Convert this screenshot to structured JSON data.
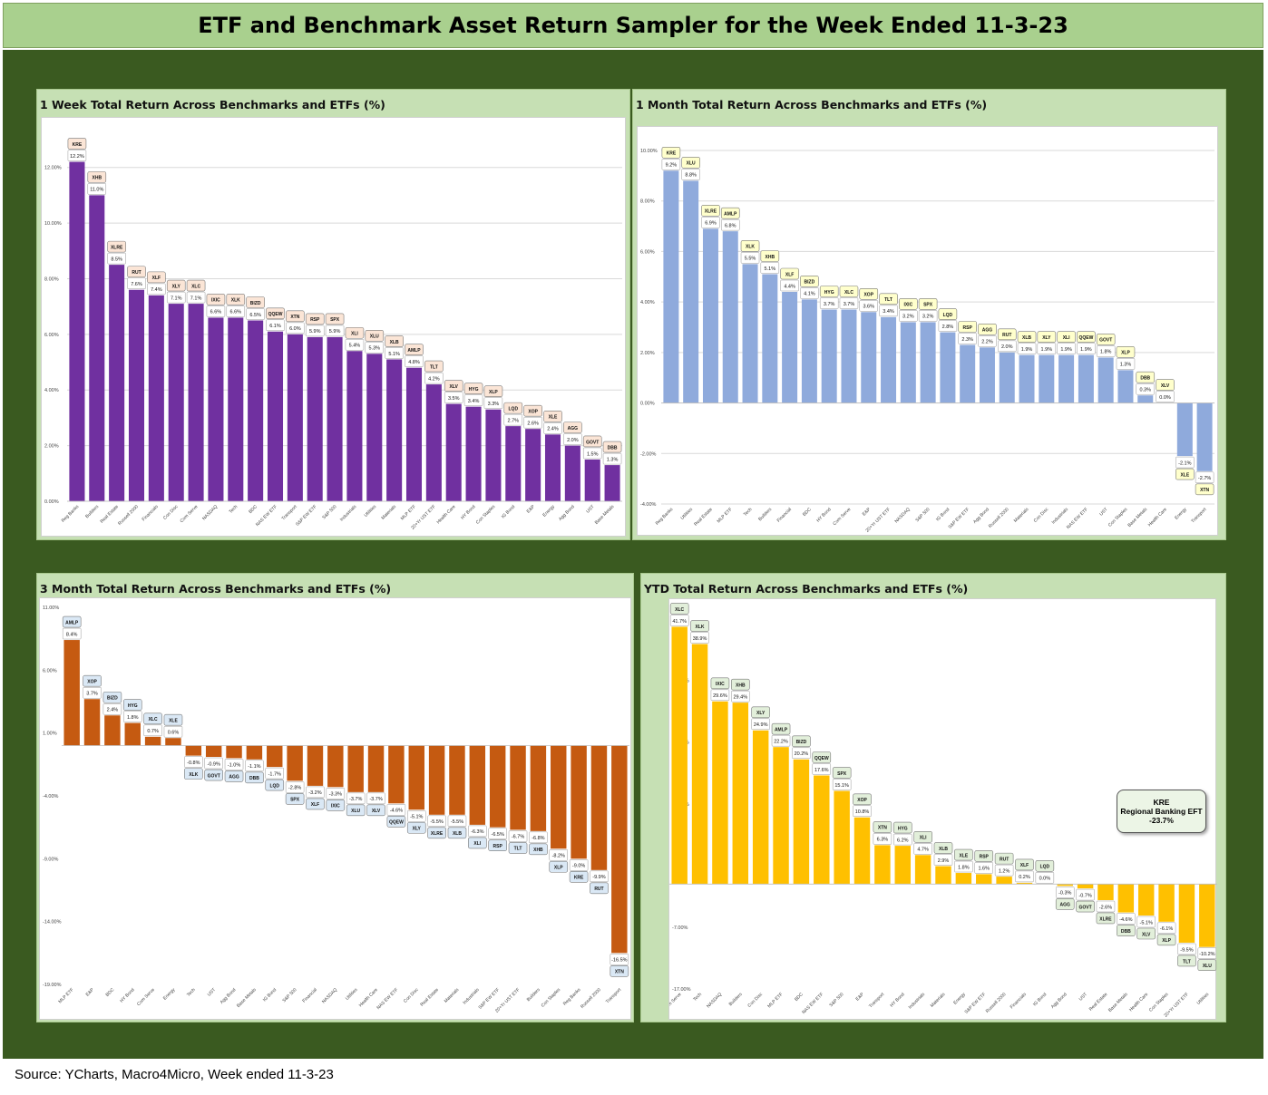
{
  "title": "ETF and Benchmark Asset Return Sampler for the Week Ended 11-3-23",
  "source": "Source: YCharts, Macro4Micro, Week ended 11-3-23",
  "chart_data": [
    {
      "id": "week",
      "type": "bar",
      "title": "1 Week Total Return Across Benchmarks and ETFs (%)",
      "color": "#7030a0",
      "label_fill": "#fbe5d6",
      "ylim": [
        0,
        13
      ],
      "yticks": [
        "0.00%",
        "2.00%",
        "4.00%",
        "6.00%",
        "8.00%",
        "10.00%",
        "12.00%"
      ],
      "ytick_values": [
        0,
        2,
        4,
        6,
        8,
        10,
        12
      ],
      "categories": [
        "Reg Banks",
        "Builders",
        "Real Estate",
        "Russell 2000",
        "Financials",
        "Con Disc",
        "Com Serve",
        "NASDAQ",
        "Tech",
        "BDC",
        "NAS EW ETF",
        "Transport",
        "S&P EW ETF",
        "S&P 500",
        "Industrials",
        "Utilities",
        "Materials",
        "MLP ETF",
        "20+Yr UST ETF",
        "Health Care",
        "HY Bond",
        "Con Staples",
        "IG Bond",
        "E&P",
        "Energy",
        "Agg Bond",
        "UST",
        "Base Metals"
      ],
      "tickers": [
        "KRE",
        "XHB",
        "XLRE",
        "RUT",
        "XLF",
        "XLY",
        "XLC",
        "IXIC",
        "XLK",
        "BIZD",
        "QQEW",
        "XTN",
        "RSP",
        "SPX",
        "XLI",
        "XLU",
        "XLB",
        "AMLP",
        "TLT",
        "XLV",
        "HYG",
        "XLP",
        "LQD",
        "XOP",
        "XLE",
        "AGG",
        "GOVT",
        "DBB"
      ],
      "labels": [
        "12.2%",
        "11.0%",
        "8.5%",
        "7.6%",
        "7.4%",
        "7.1%",
        "7.1%",
        "6.6%",
        "6.6%",
        "6.5%",
        "6.1%",
        "6.0%",
        "5.9%",
        "5.9%",
        "5.4%",
        "5.3%",
        "5.1%",
        "4.8%",
        "4.2%",
        "3.5%",
        "3.4%",
        "3.3%",
        "2.7%",
        "2.6%",
        "2.4%",
        "2.0%",
        "1.5%",
        "1.3%"
      ],
      "values": [
        12.2,
        11.0,
        8.5,
        7.6,
        7.4,
        7.1,
        7.1,
        6.6,
        6.6,
        6.5,
        6.1,
        6.0,
        5.9,
        5.9,
        5.4,
        5.3,
        5.1,
        4.8,
        4.2,
        3.5,
        3.4,
        3.3,
        2.7,
        2.6,
        2.4,
        2.0,
        1.5,
        1.3
      ],
      "grid": true
    },
    {
      "id": "month",
      "type": "bar",
      "title": "1 Month Total Return Across Benchmarks and ETFs (%)",
      "color": "#8faadc",
      "label_fill": "#ffffcc",
      "ylim": [
        -4,
        10
      ],
      "yticks": [
        "-4.00%",
        "-2.00%",
        "0.00%",
        "2.00%",
        "4.00%",
        "6.00%",
        "8.00%",
        "10.00%"
      ],
      "ytick_values": [
        -4,
        -2,
        0,
        2,
        4,
        6,
        8,
        10
      ],
      "categories": [
        "Reg Banks",
        "Utilities",
        "Real Estate",
        "MLP ETF",
        "Tech",
        "Builders",
        "Financial",
        "BDC",
        "HY Bond",
        "Com Serve",
        "E&P",
        "20+Yr UST ETF",
        "NASDAQ",
        "S&P 500",
        "IG Bond",
        "S&P EW ETF",
        "Agg Bond",
        "Russell 2000",
        "Materials",
        "Con Disc",
        "Industrials",
        "NAS EW ETF",
        "UST",
        "Con Staples",
        "Base Metals",
        "Health Care",
        "Energy",
        "Transport"
      ],
      "tickers": [
        "KRE",
        "XLU",
        "XLRE",
        "AMLP",
        "XLK",
        "XHB",
        "XLF",
        "BIZD",
        "HYG",
        "XLC",
        "XOP",
        "TLT",
        "IXIC",
        "SPX",
        "LQD",
        "RSP",
        "AGG",
        "RUT",
        "XLB",
        "XLY",
        "XLI",
        "QQEW",
        "GOVT",
        "XLP",
        "DBB",
        "XLV",
        "XLE",
        "XTN"
      ],
      "labels": [
        "9.2%",
        "8.8%",
        "6.9%",
        "6.8%",
        "5.5%",
        "5.1%",
        "4.4%",
        "4.1%",
        "3.7%",
        "3.7%",
        "3.6%",
        "3.4%",
        "3.2%",
        "3.2%",
        "2.8%",
        "2.3%",
        "2.2%",
        "2.0%",
        "1.9%",
        "1.9%",
        "1.9%",
        "1.9%",
        "1.8%",
        "1.3%",
        "0.3%",
        "0.0%",
        "-2.1%",
        "-2.7%"
      ],
      "values": [
        9.2,
        8.8,
        6.9,
        6.8,
        5.5,
        5.1,
        4.4,
        4.1,
        3.7,
        3.7,
        3.6,
        3.4,
        3.2,
        3.2,
        2.8,
        2.3,
        2.2,
        2.0,
        1.9,
        1.9,
        1.9,
        1.9,
        1.8,
        1.3,
        0.3,
        0.0,
        -2.1,
        -2.7
      ],
      "grid": true
    },
    {
      "id": "three_month",
      "type": "bar",
      "title": "3 Month Total Return Across Benchmarks and ETFs (%)",
      "color": "#c55a11",
      "label_fill": "#dae8f5",
      "ylim": [
        -19,
        11
      ],
      "yticks": [
        "-19.00%",
        "-14.00%",
        "-9.00%",
        "-4.00%",
        "1.00%",
        "6.00%",
        "11.00%"
      ],
      "ytick_values": [
        -19,
        -14,
        -9,
        -4,
        1,
        6,
        11
      ],
      "categories": [
        "MLP ETF",
        "E&P",
        "BDC",
        "HY Bond",
        "Com Serve",
        "Energy",
        "Tech",
        "UST",
        "Agg Bond",
        "Base Metals",
        "IG Bond",
        "S&P 500",
        "Financial",
        "NASDAQ",
        "Utilities",
        "Health Care",
        "NAS EW ETF",
        "Con Disc",
        "Real Estate",
        "Materials",
        "Industrials",
        "S&P EW ETF",
        "20+Yr UST ETF",
        "Builders",
        "Con Staples",
        "Reg Banks",
        "Russell 2000",
        "Transport"
      ],
      "tickers": [
        "AMLP",
        "XOP",
        "BIZD",
        "HYG",
        "XLC",
        "XLE",
        "XLK",
        "GOVT",
        "AGG",
        "DBB",
        "LQD",
        "SPX",
        "XLF",
        "IXIC",
        "XLU",
        "XLV",
        "QQEW",
        "XLY",
        "XLRE",
        "XLB",
        "XLI",
        "RSP",
        "TLT",
        "XHB",
        "XLP",
        "KRE",
        "RUT",
        "XTN"
      ],
      "labels": [
        "8.4%",
        "3.7%",
        "2.4%",
        "1.8%",
        "0.7%",
        "0.6%",
        "-0.8%",
        "-0.9%",
        "-1.0%",
        "-1.1%",
        "-1.7%",
        "-2.8%",
        "-3.2%",
        "-3.3%",
        "-3.7%",
        "-3.7%",
        "-4.6%",
        "-5.1%",
        "-5.5%",
        "-5.5%",
        "-6.3%",
        "-6.5%",
        "-6.7%",
        "-6.8%",
        "-8.2%",
        "-9.0%",
        "-9.9%",
        "-16.5%"
      ],
      "values": [
        8.4,
        3.7,
        2.4,
        1.8,
        0.7,
        0.6,
        -0.8,
        -0.9,
        -1.0,
        -1.1,
        -1.7,
        -2.8,
        -3.2,
        -3.3,
        -3.7,
        -3.7,
        -4.6,
        -5.1,
        -5.5,
        -5.5,
        -6.3,
        -6.5,
        -6.7,
        -6.8,
        -8.2,
        -9.0,
        -9.9,
        -16.5
      ],
      "grid": false
    },
    {
      "id": "ytd",
      "type": "bar",
      "title": "YTD Total Return Across Benchmarks and ETFs (%)",
      "color": "#ffc000",
      "label_fill": "#e2efda",
      "ylim": [
        -17,
        45
      ],
      "yticks": [
        "-17.00%",
        "-7.00%",
        "3.00%",
        "13.00%",
        "23.00%",
        "33.00%",
        "43.00%"
      ],
      "ytick_values": [
        -17,
        -7,
        3,
        13,
        23,
        33,
        43
      ],
      "categories": [
        "Com Serve",
        "Tech",
        "NASDAQ",
        "Builders",
        "Con Disc",
        "MLP ETF",
        "BDC",
        "NAS EW ETF",
        "S&P 500",
        "E&P",
        "Transport",
        "HY Bond",
        "Industrials",
        "Materials",
        "Energy",
        "S&P EW ETF",
        "Russell 2000",
        "Financials",
        "IG Bond",
        "Agg Bond",
        "UST",
        "Real Estate",
        "Base Metals",
        "Health Care",
        "Con Staples",
        "20+Yr UST ETF",
        "Utilities"
      ],
      "tickers": [
        "XLC",
        "XLK",
        "IXIC",
        "XHB",
        "XLY",
        "AMLP",
        "BIZD",
        "QQEW",
        "SPX",
        "XOP",
        "XTN",
        "HYG",
        "XLI",
        "XLB",
        "XLE",
        "RSP",
        "RUT",
        "XLF",
        "LQD",
        "AGG",
        "GOVT",
        "XLRE",
        "DBB",
        "XLV",
        "XLP",
        "TLT",
        "XLU"
      ],
      "labels": [
        "41.7%",
        "38.9%",
        "29.6%",
        "29.4%",
        "24.9%",
        "22.2%",
        "20.2%",
        "17.6%",
        "15.1%",
        "10.8%",
        "6.3%",
        "6.2%",
        "4.7%",
        "2.9%",
        "1.8%",
        "1.6%",
        "1.2%",
        "0.2%",
        "0.0%",
        "-0.3%",
        "-0.7%",
        "-2.6%",
        "-4.6%",
        "-5.1%",
        "-6.1%",
        "-9.5%",
        "-10.2%"
      ],
      "values": [
        41.7,
        38.9,
        29.6,
        29.4,
        24.9,
        22.2,
        20.2,
        17.6,
        15.1,
        10.8,
        6.3,
        6.2,
        4.7,
        2.9,
        1.8,
        1.6,
        1.2,
        0.2,
        0.0,
        -0.3,
        -0.7,
        -2.6,
        -4.6,
        -5.1,
        -6.1,
        -9.5,
        -10.2
      ],
      "grid": false,
      "annotation": {
        "ticker": "KRE",
        "name": "Regional Banking EFT",
        "value": "-23.7%"
      }
    }
  ]
}
